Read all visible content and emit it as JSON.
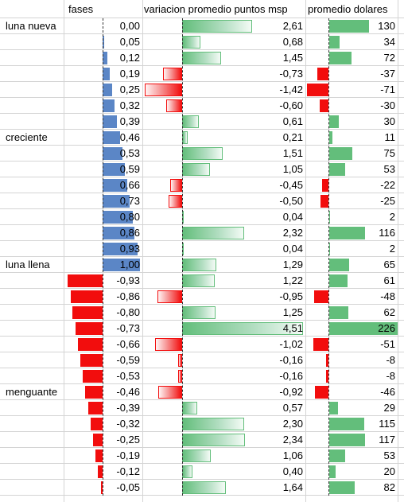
{
  "headers": {
    "fases": "fases",
    "variacion": "variacion promedio puntos msp",
    "dolares": "promedio dolares"
  },
  "colors": {
    "positive_data_bar": "#63be7b",
    "negative_data_bar": "#f20d0d",
    "fases_positive_bar": "#5b86c6",
    "gridline": "#d4d4d4"
  },
  "rows": [
    {
      "label": "luna nueva",
      "fase": "0,00",
      "fv": 0.0,
      "var": "2,61",
      "vv": 2.61,
      "usd": "130",
      "dv": 130
    },
    {
      "label": "",
      "fase": "0,05",
      "fv": 0.05,
      "var": "0,68",
      "vv": 0.68,
      "usd": "34",
      "dv": 34
    },
    {
      "label": "",
      "fase": "0,12",
      "fv": 0.12,
      "var": "1,45",
      "vv": 1.45,
      "usd": "72",
      "dv": 72
    },
    {
      "label": "",
      "fase": "0,19",
      "fv": 0.19,
      "var": "-0,73",
      "vv": -0.73,
      "usd": "-37",
      "dv": -37
    },
    {
      "label": "",
      "fase": "0,25",
      "fv": 0.25,
      "var": "-1,42",
      "vv": -1.42,
      "usd": "-71",
      "dv": -71
    },
    {
      "label": "",
      "fase": "0,32",
      "fv": 0.32,
      "var": "-0,60",
      "vv": -0.6,
      "usd": "-30",
      "dv": -30
    },
    {
      "label": "",
      "fase": "0,39",
      "fv": 0.39,
      "var": "0,61",
      "vv": 0.61,
      "usd": "30",
      "dv": 30
    },
    {
      "label": "creciente",
      "fase": "0,46",
      "fv": 0.46,
      "var": "0,21",
      "vv": 0.21,
      "usd": "11",
      "dv": 11
    },
    {
      "label": "",
      "fase": "0,53",
      "fv": 0.53,
      "var": "1,51",
      "vv": 1.51,
      "usd": "75",
      "dv": 75
    },
    {
      "label": "",
      "fase": "0,59",
      "fv": 0.59,
      "var": "1,05",
      "vv": 1.05,
      "usd": "53",
      "dv": 53
    },
    {
      "label": "",
      "fase": "0,66",
      "fv": 0.66,
      "var": "-0,45",
      "vv": -0.45,
      "usd": "-22",
      "dv": -22
    },
    {
      "label": "",
      "fase": "0,73",
      "fv": 0.73,
      "var": "-0,50",
      "vv": -0.5,
      "usd": "-25",
      "dv": -25
    },
    {
      "label": "",
      "fase": "0,80",
      "fv": 0.8,
      "var": "0,04",
      "vv": 0.04,
      "usd": "2",
      "dv": 2
    },
    {
      "label": "",
      "fase": "0,86",
      "fv": 0.86,
      "var": "2,32",
      "vv": 2.32,
      "usd": "116",
      "dv": 116
    },
    {
      "label": "",
      "fase": "0,93",
      "fv": 0.93,
      "var": "0,04",
      "vv": 0.04,
      "usd": "2",
      "dv": 2
    },
    {
      "label": "luna llena",
      "fase": "1,00",
      "fv": 1.0,
      "var": "1,29",
      "vv": 1.29,
      "usd": "65",
      "dv": 65
    },
    {
      "label": "",
      "fase": "-0,93",
      "fv": -0.93,
      "var": "1,22",
      "vv": 1.22,
      "usd": "61",
      "dv": 61
    },
    {
      "label": "",
      "fase": "-0,86",
      "fv": -0.86,
      "var": "-0,95",
      "vv": -0.95,
      "usd": "-48",
      "dv": -48
    },
    {
      "label": "",
      "fase": "-0,80",
      "fv": -0.8,
      "var": "1,25",
      "vv": 1.25,
      "usd": "62",
      "dv": 62
    },
    {
      "label": "",
      "fase": "-0,73",
      "fv": -0.73,
      "var": "4,51",
      "vv": 4.51,
      "usd": "226",
      "dv": 226
    },
    {
      "label": "",
      "fase": "-0,66",
      "fv": -0.66,
      "var": "-1,02",
      "vv": -1.02,
      "usd": "-51",
      "dv": -51
    },
    {
      "label": "",
      "fase": "-0,59",
      "fv": -0.59,
      "var": "-0,16",
      "vv": -0.16,
      "usd": "-8",
      "dv": -8
    },
    {
      "label": "",
      "fase": "-0,53",
      "fv": -0.53,
      "var": "-0,16",
      "vv": -0.16,
      "usd": "-8",
      "dv": -8
    },
    {
      "label": "menguante",
      "fase": "-0,46",
      "fv": -0.46,
      "var": "-0,92",
      "vv": -0.92,
      "usd": "-46",
      "dv": -46
    },
    {
      "label": "",
      "fase": "-0,39",
      "fv": -0.39,
      "var": "0,57",
      "vv": 0.57,
      "usd": "29",
      "dv": 29
    },
    {
      "label": "",
      "fase": "-0,32",
      "fv": -0.32,
      "var": "2,30",
      "vv": 2.3,
      "usd": "115",
      "dv": 115
    },
    {
      "label": "",
      "fase": "-0,25",
      "fv": -0.25,
      "var": "2,34",
      "vv": 2.34,
      "usd": "117",
      "dv": 117
    },
    {
      "label": "",
      "fase": "-0,19",
      "fv": -0.19,
      "var": "1,06",
      "vv": 1.06,
      "usd": "53",
      "dv": 53
    },
    {
      "label": "",
      "fase": "-0,12",
      "fv": -0.12,
      "var": "0,40",
      "vv": 0.4,
      "usd": "20",
      "dv": 20
    },
    {
      "label": "",
      "fase": "-0,05",
      "fv": -0.05,
      "var": "1,64",
      "vv": 1.64,
      "usd": "82",
      "dv": 82
    }
  ]
}
